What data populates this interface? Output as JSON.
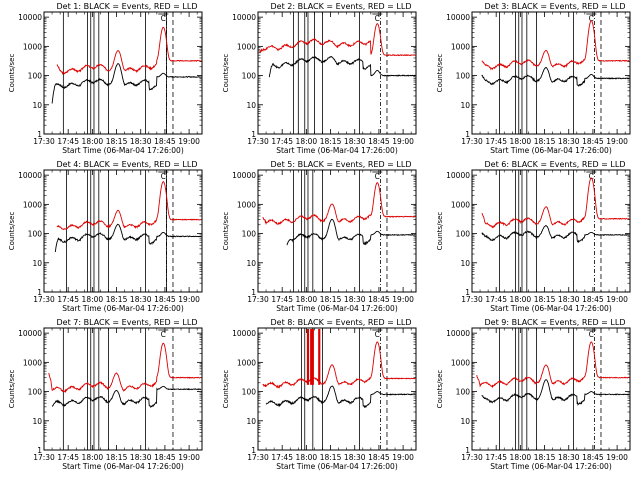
{
  "chart_data": {
    "type": "line",
    "xlabel": "Start Time (06-Mar-04 17:26:00)",
    "ylabel": "Counts/sec",
    "x_ticks": [
      "17:30",
      "17:45",
      "18:00",
      "18:15",
      "18:30",
      "18:45",
      "19:00"
    ],
    "x_tick_minutes": [
      30,
      45,
      60,
      75,
      90,
      105,
      120
    ],
    "xlim_minutes_after_17h": [
      30,
      128
    ],
    "y_scale": "log",
    "y_ticks": [
      "1",
      "10",
      "100",
      "1000",
      "10000"
    ],
    "ylim": [
      1,
      15000
    ],
    "flare_marker": "C",
    "colors": {
      "events": "#000000",
      "lld": "#dd0000"
    },
    "panels": [
      {
        "title": "Det 1: BLACK = Events, RED = LLD",
        "events_start": [
          35,
          12
        ],
        "lld_start": [
          38,
          200
        ],
        "events_base": 45,
        "lld_base": 140,
        "broad_hump": 1,
        "peak1": {
          "t": 76,
          "events": 250,
          "lld": 700
        },
        "peak2": {
          "t": 104,
          "events": 120,
          "lld": 4500
        },
        "post_peak": {
          "events": 90,
          "lld": 320
        },
        "solid_lines": [
          42,
          57,
          59,
          61,
          64,
          70,
          93,
          106
        ],
        "dashdot_lines": [
          106
        ],
        "dashed_lines": [
          110
        ]
      },
      {
        "title": "Det 2: BLACK = Events, RED = LLD",
        "events_start": [
          37,
          80
        ],
        "lld_start": [
          31,
          600
        ],
        "events_base": 220,
        "lld_base": 900,
        "broad_hump": 1.3,
        "peak1": {
          "t": 76,
          "events": 350,
          "lld": 1100
        },
        "peak2": {
          "t": 104,
          "events": 150,
          "lld": 6000
        },
        "post_peak": {
          "events": 100,
          "lld": 500
        },
        "solid_lines": [
          52,
          55,
          59,
          61,
          65,
          70,
          93
        ],
        "dashdot_lines": [
          106
        ],
        "dashed_lines": [
          110
        ]
      },
      {
        "title": "Det 3: BLACK = Events, RED = LLD",
        "events_start": [
          36,
          100
        ],
        "lld_start": [
          36,
          300
        ],
        "events_base": 60,
        "lld_base": 200,
        "broad_hump": 1,
        "peak1": {
          "t": 76,
          "events": 180,
          "lld": 700
        },
        "peak2": {
          "t": 104,
          "events": 110,
          "lld": 7500
        },
        "post_peak": {
          "events": 80,
          "lld": 320
        },
        "solid_lines": [
          47,
          57,
          59,
          61,
          64,
          70,
          93
        ],
        "dashdot_lines": [
          106
        ],
        "dashed_lines": [
          110
        ]
      },
      {
        "title": "Det 4: BLACK = Events, RED = LLD",
        "events_start": [
          37,
          22
        ],
        "lld_start": [
          38,
          150
        ],
        "events_base": 60,
        "lld_base": 160,
        "broad_hump": 1,
        "peak1": {
          "t": 76,
          "events": 200,
          "lld": 600
        },
        "peak2": {
          "t": 104,
          "events": 110,
          "lld": 6000
        },
        "post_peak": {
          "events": 80,
          "lld": 300
        },
        "solid_lines": [
          44,
          57,
          59,
          61,
          64,
          70,
          93,
          106
        ],
        "dashdot_lines": [
          106
        ],
        "dashed_lines": [
          110
        ]
      },
      {
        "title": "Det 5: BLACK = Events, RED = LLD",
        "events_start": [
          48,
          35
        ],
        "lld_start": [
          33,
          450
        ],
        "events_base": 60,
        "lld_base": 250,
        "broad_hump": 1,
        "peak1": {
          "t": 76,
          "events": 300,
          "lld": 1000
        },
        "peak2": {
          "t": 104,
          "events": 120,
          "lld": 5500
        },
        "post_peak": {
          "events": 90,
          "lld": 380
        },
        "solid_lines": [
          52,
          57,
          59,
          61,
          64,
          70,
          93
        ],
        "dashdot_lines": [
          106
        ],
        "dashed_lines": [
          110
        ]
      },
      {
        "title": "Det 6: BLACK = Events, RED = LLD",
        "events_start": [
          36,
          100
        ],
        "lld_start": [
          36,
          500
        ],
        "events_base": 70,
        "lld_base": 200,
        "broad_hump": 1,
        "peak1": {
          "t": 76,
          "events": 180,
          "lld": 800
        },
        "peak2": {
          "t": 104,
          "events": 110,
          "lld": 8000
        },
        "post_peak": {
          "events": 90,
          "lld": 320
        },
        "solid_lines": [
          47,
          57,
          59,
          61,
          64,
          70,
          93
        ],
        "dashdot_lines": [
          106
        ],
        "dashed_lines": [
          110
        ]
      },
      {
        "title": "Det 7: BLACK = Events, RED = LLD",
        "events_start": [
          35,
          35
        ],
        "lld_start": [
          33,
          500
        ],
        "events_base": 40,
        "lld_base": 120,
        "broad_hump": 1,
        "peak1": {
          "t": 75,
          "events": 100,
          "lld": 400
        },
        "peak2": {
          "t": 104,
          "events": 150,
          "lld": 4500
        },
        "post_peak": {
          "events": 120,
          "lld": 300
        },
        "solid_lines": [
          42,
          57,
          59,
          61,
          64,
          70,
          93
        ],
        "dashdot_lines": [],
        "dashed_lines": [
          110
        ]
      },
      {
        "title": "Det 8: BLACK = Events, RED = LLD",
        "events_start": [
          35,
          40
        ],
        "lld_start": [
          33,
          200
        ],
        "events_base": 40,
        "lld_base": 170,
        "broad_hump": 1,
        "peak1": {
          "t": 76,
          "events": 150,
          "lld": 800
        },
        "peak2": {
          "t": 104,
          "events": 100,
          "lld": 5000
        },
        "post_peak": {
          "events": 80,
          "lld": 280
        },
        "solid_lines": [
          57,
          59,
          64,
          70,
          93
        ],
        "red_spikes": [
          61,
          63,
          64,
          68
        ],
        "dashdot_lines": [
          106
        ],
        "dashed_lines": [
          110
        ]
      },
      {
        "title": "Det 9: BLACK = Events, RED = LLD",
        "events_start": [
          36,
          70
        ],
        "lld_start": [
          33,
          400
        ],
        "events_base": 50,
        "lld_base": 180,
        "broad_hump": 1,
        "peak1": {
          "t": 76,
          "events": 250,
          "lld": 800
        },
        "peak2": {
          "t": 104,
          "events": 100,
          "lld": 5000
        },
        "post_peak": {
          "events": 80,
          "lld": 300
        },
        "solid_lines": [
          47,
          57,
          59,
          61,
          64,
          70,
          93
        ],
        "dashdot_lines": [
          106
        ],
        "dashed_lines": [
          110
        ]
      }
    ]
  }
}
